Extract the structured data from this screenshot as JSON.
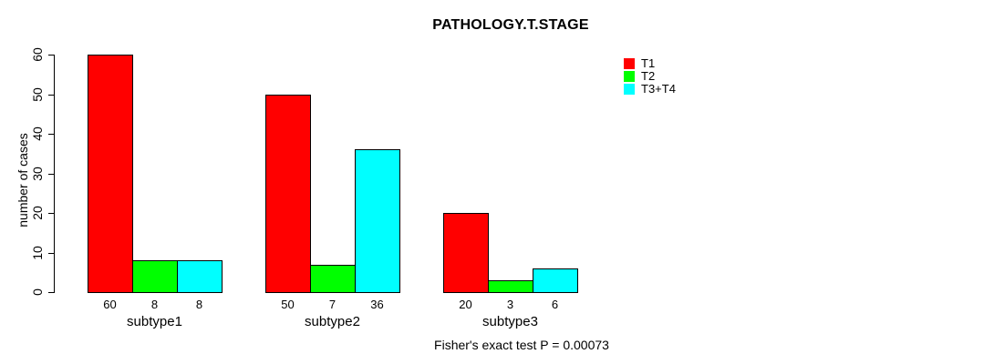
{
  "chart_data": {
    "type": "bar",
    "title": "PATHOLOGY.T.STAGE",
    "ylabel": "number of cases",
    "xlabel": "",
    "categories": [
      "subtype1",
      "subtype2",
      "subtype3"
    ],
    "series": [
      {
        "name": "T1",
        "color": "#ff0000",
        "values": [
          60,
          50,
          20
        ]
      },
      {
        "name": "T2",
        "color": "#00ff00",
        "values": [
          8,
          7,
          3
        ]
      },
      {
        "name": "T3+T4",
        "color": "#00ffff",
        "values": [
          8,
          36,
          6
        ]
      }
    ],
    "values_shown_below_bars": true,
    "yticks": [
      0,
      10,
      20,
      30,
      40,
      50,
      60
    ],
    "ylim": [
      0,
      60
    ],
    "grid": false,
    "legend_position": "top-right",
    "bar_border_color": "#000000",
    "background": "#ffffff",
    "annotation": "Fisher's exact test P = 0.00073"
  }
}
